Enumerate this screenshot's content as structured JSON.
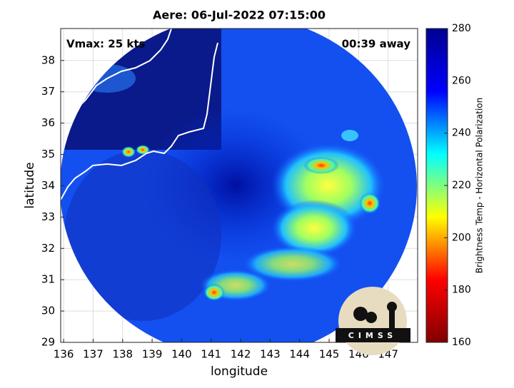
{
  "chart_data": {
    "type": "image",
    "title": "Aere: 06-Jul-2022 07:15:00",
    "x_label": "longitude",
    "y_label": "latitude",
    "xlim": [
      135.9,
      148.0
    ],
    "ylim": [
      29.0,
      39.02
    ],
    "xticks": [
      136,
      137,
      138,
      139,
      140,
      141,
      142,
      143,
      144,
      145,
      146,
      147
    ],
    "yticks": [
      29,
      30,
      31,
      32,
      33,
      34,
      35,
      36,
      37,
      38
    ],
    "grid": true,
    "annotations": [
      "Vmax: 25 kts",
      "00:39 away"
    ],
    "logo": "CIMSS",
    "colorbar": {
      "label": "Brightness Temp - Horizontal Polarization",
      "lim": [
        160,
        280
      ],
      "ticks": [
        160,
        180,
        200,
        220,
        240,
        260,
        280
      ],
      "colormap": [
        "#800000",
        "#ff0000",
        "#ffff00",
        "#00ffff",
        "#0000ff",
        "#00008f"
      ]
    }
  }
}
